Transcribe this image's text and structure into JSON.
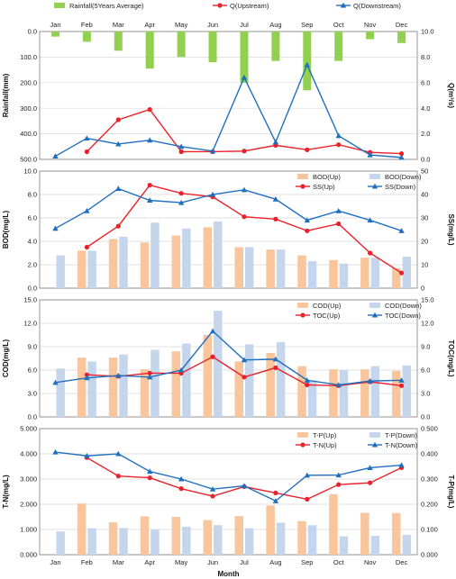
{
  "chart_data": [
    {
      "type": "bar",
      "months": [
        "Jan",
        "Feb",
        "Mar",
        "Apr",
        "May",
        "Jun",
        "Jul",
        "Aug",
        "Sep",
        "Oct",
        "Nov",
        "Dec"
      ],
      "ylabel_left": "Rainfall(mm)",
      "ylabel_right": "Q(m³/s)",
      "left_ticks": [
        "0.0",
        "100.0",
        "200.0",
        "300.0",
        "400.0",
        "500.0"
      ],
      "right_ticks": [
        "0.0",
        "2.0",
        "4.0",
        "6.0",
        "8.0",
        "10.0"
      ],
      "ylim_left": [
        0,
        500
      ],
      "ylim_right": [
        0,
        10
      ],
      "left_inverted": true,
      "show_month_labels_top": true,
      "series": [
        {
          "name": "Rainfall(5Years Average)",
          "kind": "bar",
          "axis": "left",
          "color": "#92d050",
          "values": [
            20,
            40,
            75,
            145,
            100,
            120,
            200,
            115,
            230,
            115,
            30,
            45
          ]
        },
        {
          "name": "Q(Upstream)",
          "kind": "line",
          "axis": "right",
          "marker": "circle",
          "color": "#e8212a",
          "values": [
            null,
            0.6,
            3.1,
            3.9,
            0.6,
            0.6,
            0.65,
            1.1,
            0.75,
            1.15,
            0.55,
            0.45
          ]
        },
        {
          "name": "Q(Downstream)",
          "kind": "line",
          "axis": "right",
          "marker": "triangle",
          "color": "#1f6fbf",
          "values": [
            0.25,
            1.65,
            1.2,
            1.5,
            1.0,
            0.65,
            6.4,
            1.35,
            7.4,
            1.85,
            0.35,
            0.15
          ]
        }
      ]
    },
    {
      "type": "bar",
      "months": [
        "Jan",
        "Feb",
        "Mar",
        "Apr",
        "May",
        "Jun",
        "Jul",
        "Aug",
        "Sep",
        "Oct",
        "Nov",
        "Dec"
      ],
      "ylabel_left": "BOD(mg/L)",
      "ylabel_right": "SS(mg/L)",
      "left_ticks": [
        "0.0",
        "2.0",
        "4.0",
        "6.0",
        "8.0",
        "10.0"
      ],
      "right_ticks": [
        "0",
        "10",
        "20",
        "30",
        "40",
        "50"
      ],
      "ylim_left": [
        0,
        10
      ],
      "ylim_right": [
        0,
        50
      ],
      "series": [
        {
          "name": "BOD(Up)",
          "kind": "bar",
          "axis": "left",
          "color": "#f8c59c",
          "values": [
            null,
            3.2,
            4.2,
            3.9,
            4.5,
            5.2,
            3.5,
            3.3,
            2.8,
            2.4,
            2.6,
            1.7
          ]
        },
        {
          "name": "BOD(Down)",
          "kind": "bar",
          "axis": "left",
          "color": "#c5d6ec",
          "values": [
            2.8,
            3.2,
            4.4,
            5.6,
            5.1,
            5.7,
            3.5,
            3.3,
            2.3,
            2.1,
            2.6,
            2.7
          ]
        },
        {
          "name": "SS(Up)",
          "kind": "line",
          "axis": "right",
          "marker": "circle",
          "color": "#e8212a",
          "values": [
            null,
            17.5,
            26.5,
            44,
            40.5,
            39,
            30.5,
            29.5,
            24.5,
            27.5,
            15,
            6.5
          ]
        },
        {
          "name": "SS(Down)",
          "kind": "line",
          "axis": "right",
          "marker": "triangle",
          "color": "#1f6fbf",
          "values": [
            25.5,
            33,
            42.5,
            37.5,
            36.5,
            40,
            42,
            38,
            29,
            33,
            29,
            24.5
          ]
        }
      ]
    },
    {
      "type": "bar",
      "months": [
        "Jan",
        "Feb",
        "Mar",
        "Apr",
        "May",
        "Jun",
        "Jul",
        "Aug",
        "Sep",
        "Oct",
        "Nov",
        "Dec"
      ],
      "ylabel_left": "COD(mg/L)",
      "ylabel_right": "TOC(mg/L)",
      "left_ticks": [
        "0.0",
        "3.0",
        "6.0",
        "9.0",
        "12.0",
        "15.0"
      ],
      "right_ticks": [
        "0.0",
        "3.0",
        "6.0",
        "9.0",
        "12.0",
        "15.0"
      ],
      "ylim_left": [
        0,
        15
      ],
      "ylim_right": [
        0,
        15
      ],
      "series": [
        {
          "name": "COD(Up)",
          "kind": "bar",
          "axis": "left",
          "color": "#f8c59c",
          "values": [
            null,
            7.6,
            7.6,
            6.1,
            8.4,
            10.5,
            7.1,
            8.2,
            6.5,
            6.1,
            6.1,
            5.9
          ]
        },
        {
          "name": "COD(Down)",
          "kind": "bar",
          "axis": "left",
          "color": "#c5d6ec",
          "values": [
            6.2,
            7.1,
            8.0,
            8.6,
            9.4,
            13.6,
            9.3,
            9.6,
            4.7,
            6.0,
            6.5,
            6.6
          ]
        },
        {
          "name": "TOC(Up)",
          "kind": "line",
          "axis": "right",
          "marker": "circle",
          "color": "#e8212a",
          "values": [
            null,
            5.4,
            5.2,
            5.6,
            5.6,
            7.7,
            5.1,
            6.3,
            4.1,
            4.0,
            4.5,
            4.0
          ]
        },
        {
          "name": "TOC(Down)",
          "kind": "line",
          "axis": "right",
          "marker": "triangle",
          "color": "#1f6fbf",
          "values": [
            4.4,
            5.0,
            5.3,
            5.1,
            6.0,
            11.0,
            7.3,
            7.4,
            4.7,
            4.1,
            4.6,
            4.7
          ]
        }
      ]
    },
    {
      "type": "bar",
      "months": [
        "Jan",
        "Feb",
        "Mar",
        "Apr",
        "May",
        "Jun",
        "Jul",
        "Aug",
        "Sep",
        "Oct",
        "Nov",
        "Dec"
      ],
      "ylabel_left": "T-N(mg/L)",
      "ylabel_right": "T-P(mg/L)",
      "xlabel": "Month",
      "left_ticks": [
        "0.000",
        "1.000",
        "2.000",
        "3.000",
        "4.000",
        "5.000"
      ],
      "right_ticks": [
        "0.000",
        "0.100",
        "0.200",
        "0.300",
        "0.400",
        "0.500"
      ],
      "ylim_left": [
        0,
        5
      ],
      "ylim_right": [
        0,
        0.5
      ],
      "show_month_labels_bottom": true,
      "series": [
        {
          "name": "T-P(Up)",
          "kind": "bar",
          "axis": "right",
          "color": "#f8c59c",
          "values": [
            null,
            0.203,
            0.128,
            0.152,
            0.15,
            0.137,
            0.153,
            0.195,
            0.133,
            0.24,
            0.166,
            0.165
          ]
        },
        {
          "name": "T-P(Down)",
          "kind": "bar",
          "axis": "right",
          "color": "#c5d6ec",
          "values": [
            0.092,
            0.105,
            0.106,
            0.1,
            0.111,
            0.117,
            0.105,
            0.127,
            0.117,
            0.073,
            0.075,
            0.079
          ]
        },
        {
          "name": "T-N(Up)",
          "kind": "line",
          "axis": "left",
          "marker": "circle",
          "color": "#e8212a",
          "values": [
            null,
            3.85,
            3.12,
            3.05,
            2.62,
            2.32,
            2.7,
            2.45,
            2.2,
            2.78,
            2.85,
            3.45
          ]
        },
        {
          "name": "T-N(Down)",
          "kind": "line",
          "axis": "left",
          "marker": "triangle",
          "color": "#1f6fbf",
          "values": [
            4.07,
            3.92,
            4.0,
            3.3,
            3.0,
            2.6,
            2.73,
            2.13,
            3.15,
            3.16,
            3.45,
            3.55
          ]
        }
      ]
    }
  ]
}
